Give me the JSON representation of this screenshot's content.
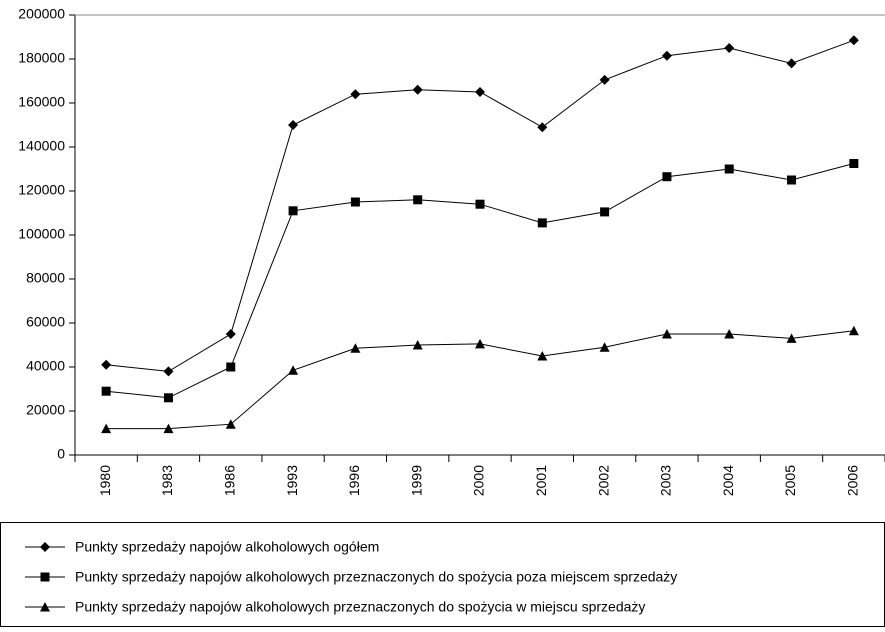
{
  "chart_data": {
    "type": "line",
    "categories": [
      "1980",
      "1983",
      "1986",
      "1993",
      "1996",
      "1999",
      "2000",
      "2001",
      "2002",
      "2003",
      "2004",
      "2005",
      "2006"
    ],
    "series": [
      {
        "name": "Punkty sprzedaży napojów alkoholowych ogółem",
        "color": "#000000",
        "marker": "diamond",
        "values": [
          41000,
          38000,
          55000,
          150000,
          164000,
          166000,
          165000,
          149000,
          170500,
          181500,
          185000,
          178000,
          188500
        ]
      },
      {
        "name": "Punkty sprzedaży napojów alkoholowych przeznaczonych do spożycia poza miejscem sprzedaży",
        "color": "#000000",
        "marker": "square",
        "values": [
          29000,
          26000,
          40000,
          111000,
          115000,
          116000,
          114000,
          105500,
          110500,
          126500,
          130000,
          125000,
          132500
        ]
      },
      {
        "name": "Punkty sprzedaży napojów alkoholowych przeznaczonych do spożycia w miejscu sprzedaży",
        "color": "#000000",
        "marker": "triangle",
        "values": [
          12000,
          12000,
          14000,
          38500,
          48500,
          50000,
          50500,
          45000,
          49000,
          55000,
          55000,
          53000,
          56500
        ]
      }
    ],
    "ylim": [
      0,
      200000
    ],
    "yticks": [
      0,
      20000,
      40000,
      60000,
      80000,
      100000,
      120000,
      140000,
      160000,
      180000,
      200000
    ],
    "grid": false,
    "legend": "bottom"
  }
}
